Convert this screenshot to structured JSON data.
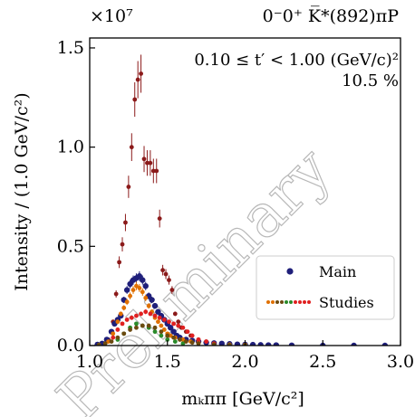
{
  "chart_data": {
    "type": "scatter",
    "title": "0⁻0⁺ K̅*(892)πP",
    "annotation_range": "0.10 ≤ t′ < 1.00 (GeV/c)²",
    "annotation_fraction": "10.5 %",
    "watermark": "Preliminary",
    "xlabel": "mₖππ [GeV/c²]",
    "ylabel": "Intensity / (1.0 GeV/c²)",
    "y_multiplier": "×10⁷",
    "xlim": [
      1.0,
      3.0
    ],
    "ylim": [
      0,
      1.55
    ],
    "x_ticks": [
      "1.0",
      "1.5",
      "2.0",
      "2.5",
      "3.0"
    ],
    "y_ticks": [
      "0.0",
      "0.5",
      "1.0",
      "1.5"
    ],
    "legend": {
      "placement": "lower-right",
      "entries": [
        "Main",
        "Studies"
      ]
    },
    "series": [
      {
        "name": "",
        "color": "#8b1a1a",
        "marker": "dot",
        "points": [
          [
            1.06,
            0.005
          ],
          [
            1.09,
            0.01
          ],
          [
            1.12,
            0.03
          ],
          [
            1.15,
            0.12
          ],
          [
            1.17,
            0.26
          ],
          [
            1.19,
            0.42
          ],
          [
            1.21,
            0.51
          ],
          [
            1.23,
            0.62
          ],
          [
            1.25,
            0.8
          ],
          [
            1.27,
            1.0
          ],
          [
            1.29,
            1.24
          ],
          [
            1.31,
            1.34
          ],
          [
            1.33,
            1.37
          ],
          [
            1.35,
            0.94
          ],
          [
            1.37,
            0.92
          ],
          [
            1.39,
            0.92
          ],
          [
            1.41,
            0.88
          ],
          [
            1.43,
            0.88
          ],
          [
            1.45,
            0.64
          ],
          [
            1.47,
            0.38
          ],
          [
            1.49,
            0.36
          ],
          [
            1.51,
            0.33
          ],
          [
            1.53,
            0.28
          ],
          [
            1.55,
            0.16
          ],
          [
            1.57,
            0.12
          ],
          [
            1.59,
            0.09
          ],
          [
            1.62,
            0.07
          ],
          [
            1.65,
            0.05
          ],
          [
            1.7,
            0.03
          ],
          [
            1.75,
            0.02
          ],
          [
            1.8,
            0.01
          ],
          [
            1.9,
            0.005
          ],
          [
            2.0,
            0.004
          ],
          [
            2.1,
            0.002
          ],
          [
            2.2,
            0.001
          ],
          [
            2.3,
            0.001
          ]
        ]
      },
      {
        "name": "Main",
        "color": "#1f1f7a",
        "marker": "dot",
        "points": [
          [
            1.05,
            0.005
          ],
          [
            1.08,
            0.01
          ],
          [
            1.11,
            0.03
          ],
          [
            1.14,
            0.07
          ],
          [
            1.16,
            0.11
          ],
          [
            1.18,
            0.13
          ],
          [
            1.2,
            0.15
          ],
          [
            1.22,
            0.23
          ],
          [
            1.24,
            0.28
          ],
          [
            1.26,
            0.31
          ],
          [
            1.28,
            0.33
          ],
          [
            1.3,
            0.34
          ],
          [
            1.32,
            0.35
          ],
          [
            1.34,
            0.33
          ],
          [
            1.36,
            0.3
          ],
          [
            1.38,
            0.25
          ],
          [
            1.4,
            0.23
          ],
          [
            1.42,
            0.2
          ],
          [
            1.44,
            0.17
          ],
          [
            1.46,
            0.15
          ],
          [
            1.48,
            0.13
          ],
          [
            1.5,
            0.11
          ],
          [
            1.52,
            0.09
          ],
          [
            1.54,
            0.07
          ],
          [
            1.56,
            0.05
          ],
          [
            1.58,
            0.04
          ],
          [
            1.62,
            0.03
          ],
          [
            1.66,
            0.025
          ],
          [
            1.7,
            0.02
          ],
          [
            1.75,
            0.015
          ],
          [
            1.8,
            0.012
          ],
          [
            1.85,
            0.01
          ],
          [
            1.9,
            0.008
          ],
          [
            1.95,
            0.006
          ],
          [
            2.0,
            0.005
          ],
          [
            2.05,
            0.004
          ],
          [
            2.1,
            0.003
          ],
          [
            2.15,
            0.002
          ],
          [
            2.2,
            0.002
          ],
          [
            2.3,
            0.001
          ],
          [
            2.5,
            0.0
          ],
          [
            2.7,
            0.0
          ],
          [
            2.9,
            0.0
          ]
        ]
      },
      {
        "name": "Studies",
        "color": "#e07000",
        "marker": "dot",
        "points": [
          [
            1.12,
            0.02
          ],
          [
            1.15,
            0.06
          ],
          [
            1.18,
            0.12
          ],
          [
            1.2,
            0.16
          ],
          [
            1.22,
            0.19
          ],
          [
            1.24,
            0.22
          ],
          [
            1.26,
            0.25
          ],
          [
            1.28,
            0.28
          ],
          [
            1.3,
            0.3
          ],
          [
            1.32,
            0.29
          ],
          [
            1.34,
            0.27
          ],
          [
            1.36,
            0.24
          ],
          [
            1.38,
            0.2
          ],
          [
            1.4,
            0.17
          ],
          [
            1.42,
            0.14
          ],
          [
            1.44,
            0.12
          ],
          [
            1.46,
            0.1
          ],
          [
            1.48,
            0.08
          ],
          [
            1.5,
            0.06
          ],
          [
            1.52,
            0.05
          ],
          [
            1.55,
            0.04
          ],
          [
            1.6,
            0.03
          ],
          [
            1.65,
            0.02
          ],
          [
            1.7,
            0.015
          ],
          [
            1.8,
            0.01
          ],
          [
            1.9,
            0.005
          ],
          [
            2.0,
            0.004
          ]
        ]
      },
      {
        "name": "",
        "color": "#e02020",
        "marker": "dot",
        "points": [
          [
            1.15,
            0.04
          ],
          [
            1.18,
            0.08
          ],
          [
            1.21,
            0.11
          ],
          [
            1.24,
            0.13
          ],
          [
            1.27,
            0.14
          ],
          [
            1.3,
            0.15
          ],
          [
            1.33,
            0.16
          ],
          [
            1.36,
            0.17
          ],
          [
            1.39,
            0.16
          ],
          [
            1.42,
            0.15
          ],
          [
            1.45,
            0.14
          ],
          [
            1.48,
            0.13
          ],
          [
            1.51,
            0.12
          ],
          [
            1.54,
            0.11
          ],
          [
            1.57,
            0.1
          ],
          [
            1.6,
            0.09
          ],
          [
            1.63,
            0.07
          ],
          [
            1.66,
            0.05
          ],
          [
            1.7,
            0.03
          ],
          [
            1.75,
            0.02
          ],
          [
            1.8,
            0.01
          ]
        ]
      },
      {
        "name": "",
        "color": "#2a8a2a",
        "marker": "dot",
        "points": [
          [
            1.18,
            0.03
          ],
          [
            1.22,
            0.06
          ],
          [
            1.26,
            0.09
          ],
          [
            1.3,
            0.11
          ],
          [
            1.34,
            0.1
          ],
          [
            1.38,
            0.09
          ],
          [
            1.42,
            0.07
          ],
          [
            1.46,
            0.05
          ],
          [
            1.5,
            0.03
          ],
          [
            1.55,
            0.02
          ],
          [
            1.6,
            0.01
          ]
        ]
      },
      {
        "name": "",
        "color": "#6b4a10",
        "marker": "dot",
        "points": [
          [
            1.06,
            0.004
          ],
          [
            1.1,
            0.01
          ],
          [
            1.14,
            0.02
          ],
          [
            1.18,
            0.04
          ],
          [
            1.22,
            0.06
          ],
          [
            1.26,
            0.08
          ],
          [
            1.3,
            0.09
          ],
          [
            1.34,
            0.1
          ],
          [
            1.38,
            0.1
          ],
          [
            1.42,
            0.09
          ],
          [
            1.46,
            0.07
          ],
          [
            1.5,
            0.05
          ],
          [
            1.54,
            0.04
          ],
          [
            1.58,
            0.03
          ],
          [
            1.62,
            0.02
          ],
          [
            1.66,
            0.015
          ],
          [
            1.7,
            0.01
          ],
          [
            1.8,
            0.005
          ],
          [
            1.9,
            0.003
          ],
          [
            2.0,
            0.002
          ]
        ]
      }
    ]
  }
}
